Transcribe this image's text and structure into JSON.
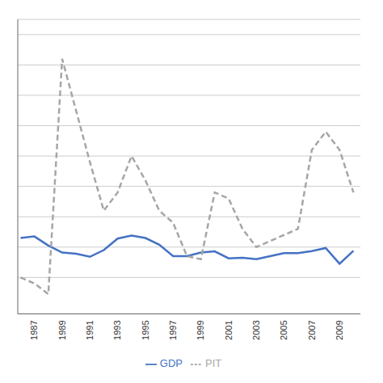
{
  "chart_data": {
    "type": "line",
    "x": [
      1986,
      1987,
      1988,
      1989,
      1990,
      1991,
      1992,
      1993,
      1994,
      1995,
      1996,
      1997,
      1998,
      1999,
      2000,
      2001,
      2002,
      2003,
      2004,
      2005,
      2006,
      2007,
      2008,
      2009,
      2010
    ],
    "series": [
      {
        "name": "GDP",
        "color": "#4472C4",
        "line_style": "solid",
        "values": [
          1.3,
          1.35,
          1.05,
          0.82,
          0.78,
          0.68,
          0.9,
          1.28,
          1.38,
          1.3,
          1.08,
          0.7,
          0.7,
          0.82,
          0.86,
          0.63,
          0.65,
          0.6,
          0.7,
          0.8,
          0.8,
          0.87,
          0.97,
          0.45,
          0.88
        ]
      },
      {
        "name": "PIT",
        "color": "#A6A6A6",
        "line_style": "dashed",
        "values": [
          0.0,
          -0.2,
          -0.55,
          7.2,
          5.5,
          3.8,
          2.2,
          2.8,
          4.0,
          3.2,
          2.2,
          1.8,
          0.7,
          0.6,
          2.8,
          2.6,
          1.6,
          1.0,
          1.2,
          1.4,
          1.6,
          4.2,
          4.8,
          4.2,
          2.8
        ]
      }
    ],
    "xlim": [
      1985.8,
      2010.5
    ],
    "ylim": [
      -1.2,
      8.5
    ],
    "xticks": [
      1987,
      1989,
      1991,
      1993,
      1995,
      1997,
      1999,
      2001,
      2003,
      2005,
      2007,
      2009
    ],
    "yticks": [
      0,
      1,
      2,
      3,
      4,
      5,
      6,
      7,
      8
    ],
    "grid": "y",
    "legend": "bottom",
    "tick_labels": "x"
  }
}
